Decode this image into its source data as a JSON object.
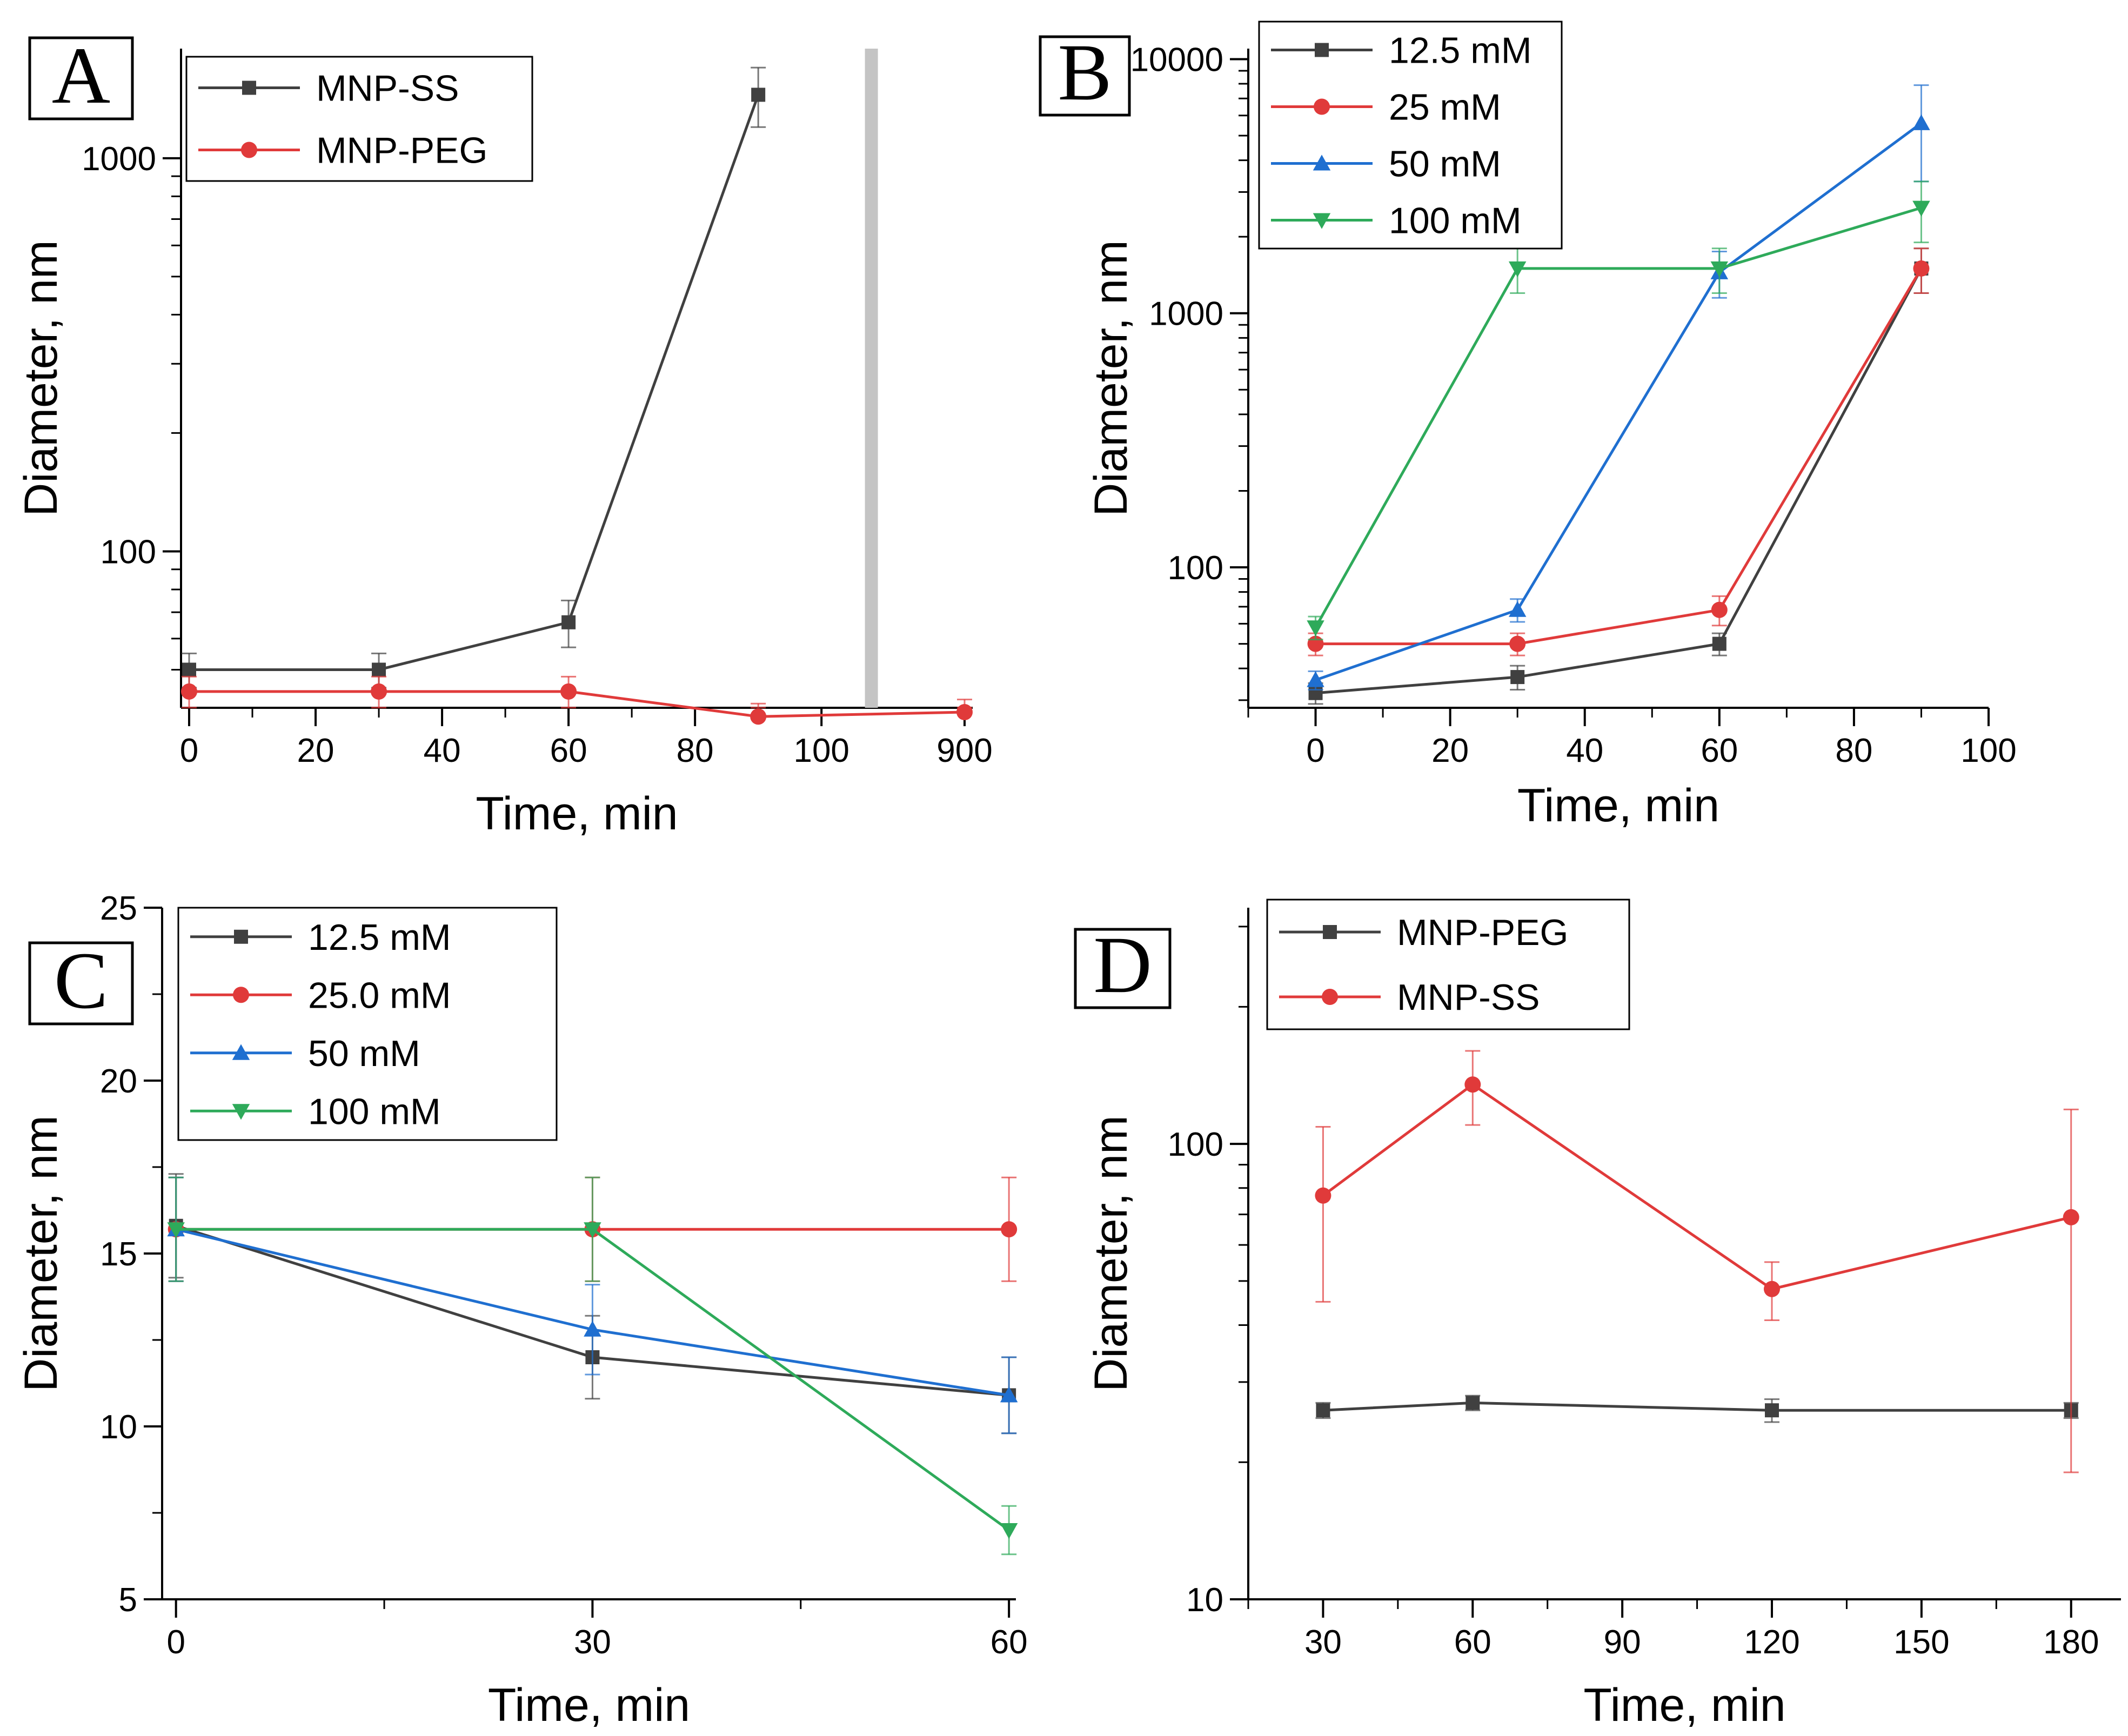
{
  "chart_data": [
    {
      "panel": "A",
      "type": "line",
      "yscale": "log",
      "xlabel": "Time, min",
      "ylabel": "Diameter, nm",
      "ylim": [
        40,
        1900
      ],
      "yticks": [
        100,
        1000
      ],
      "x_axis_break": true,
      "x_break_between": [
        100,
        900
      ],
      "xticks": [
        "0",
        "20",
        "40",
        "60",
        "80",
        "100",
        "900"
      ],
      "legend": "top-left",
      "series": [
        {
          "name": "MNP-SS",
          "color": "#404040",
          "marker": "square",
          "x": [
            0,
            30,
            60,
            90
          ],
          "values": [
            50,
            50,
            66,
            1450
          ],
          "err": [
            5,
            5,
            9,
            250
          ]
        },
        {
          "name": "MNP-PEG",
          "color": "#e03a3a",
          "marker": "circle",
          "x": [
            0,
            30,
            60,
            90,
            900
          ],
          "values": [
            44,
            44,
            44,
            38,
            39
          ],
          "err": [
            4,
            4,
            4,
            3,
            3
          ]
        }
      ]
    },
    {
      "panel": "B",
      "type": "line",
      "yscale": "log",
      "xlabel": "Time, min",
      "ylabel": "Diameter, nm",
      "xlim": [
        -10,
        100
      ],
      "ylim": [
        28,
        11000
      ],
      "xticks": [
        "0",
        "20",
        "40",
        "60",
        "80",
        "100"
      ],
      "yticks": [
        100,
        1000,
        10000
      ],
      "legend": "top-left",
      "series": [
        {
          "name": "12.5 mM",
          "color": "#404040",
          "marker": "square",
          "x": [
            0,
            30,
            60,
            90
          ],
          "values": [
            32,
            37,
            50,
            1500
          ],
          "err": [
            3,
            4,
            5,
            300
          ]
        },
        {
          "name": "25 mM",
          "color": "#e03a3a",
          "marker": "circle",
          "x": [
            0,
            30,
            60,
            90
          ],
          "values": [
            50,
            50,
            68,
            1500
          ],
          "err": [
            5,
            5,
            9,
            300
          ]
        },
        {
          "name": "50 mM",
          "color": "#1f6fd0",
          "marker": "triangle-up",
          "x": [
            0,
            30,
            60,
            90
          ],
          "values": [
            36,
            68,
            1450,
            5600
          ],
          "err": [
            3,
            7,
            300,
            2300
          ]
        },
        {
          "name": "100 mM",
          "color": "#2eaa5a",
          "marker": "triangle-down",
          "x": [
            0,
            30,
            60,
            90
          ],
          "values": [
            58,
            1500,
            1500,
            2600
          ],
          "err": [
            6,
            300,
            300,
            700
          ]
        }
      ]
    },
    {
      "panel": "C",
      "type": "line",
      "yscale": "linear",
      "xlabel": "Time, min",
      "ylabel": "Diameter, nm",
      "xlim": [
        -1,
        60.5
      ],
      "ylim": [
        5,
        25
      ],
      "xticks": [
        "0",
        "30",
        "60"
      ],
      "yticks": [
        5,
        10,
        15,
        20,
        25
      ],
      "legend": "top-left",
      "series": [
        {
          "name": "12.5 mM",
          "color": "#404040",
          "marker": "square",
          "x": [
            0,
            30,
            60
          ],
          "values": [
            15.8,
            12.0,
            10.9
          ],
          "err": [
            1.5,
            1.2,
            1.1
          ]
        },
        {
          "name": "25.0 mM",
          "color": "#e03a3a",
          "marker": "circle",
          "x": [
            0,
            30,
            60
          ],
          "values": [
            15.7,
            15.7,
            15.7
          ],
          "err": [
            1.5,
            1.5,
            1.5
          ]
        },
        {
          "name": "50 mM",
          "color": "#1f6fd0",
          "marker": "triangle-up",
          "x": [
            0,
            30,
            60
          ],
          "values": [
            15.7,
            12.8,
            10.9
          ],
          "err": [
            1.5,
            1.3,
            1.1
          ]
        },
        {
          "name": "100 mM",
          "color": "#2eaa5a",
          "marker": "triangle-down",
          "x": [
            0,
            30,
            60
          ],
          "values": [
            15.7,
            15.7,
            7.0
          ],
          "err": [
            1.5,
            1.5,
            0.7
          ]
        }
      ]
    },
    {
      "panel": "D",
      "type": "line",
      "yscale": "log",
      "xlabel": "Time, min",
      "ylabel": "Diameter, nm",
      "xlim": [
        15,
        190
      ],
      "ylim": [
        10,
        330
      ],
      "xticks": [
        "30",
        "60",
        "90",
        "120",
        "150",
        "180"
      ],
      "yticks": [
        10,
        100
      ],
      "legend": "top-left",
      "series": [
        {
          "name": "MNP-PEG",
          "color": "#404040",
          "marker": "square",
          "x": [
            30,
            60,
            120,
            180
          ],
          "values": [
            26,
            27,
            26,
            26
          ],
          "err": [
            1,
            1,
            1.5,
            1
          ]
        },
        {
          "name": "MNP-SS",
          "color": "#e03a3a",
          "marker": "circle",
          "x": [
            30,
            60,
            120,
            180
          ],
          "values": [
            77,
            135,
            48,
            69
          ],
          "err": [
            32,
            25,
            7,
            50
          ]
        }
      ]
    }
  ]
}
